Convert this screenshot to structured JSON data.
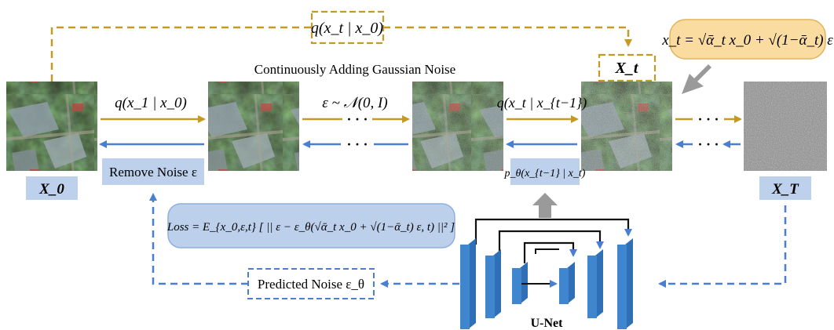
{
  "top_transition": "q(x_t | x_0)",
  "subtitle": "Continuously Adding Gaussian Noise",
  "formula_box": "x_t = √ᾱ_t x_0 + √(1−ᾱ_t) ε",
  "xt_box": "X_t",
  "arrows": {
    "q_x1_x0": "q(x_1 | x_0)",
    "noise_dist": "ε ~ 𝒩(0, I)",
    "q_xt_xt1": "q(x_t | x_{t−1})",
    "ellipsis": "· · ·"
  },
  "labels": {
    "x0": "X_0",
    "xT": "X_T",
    "remove_noise": "Remove Noise ε",
    "p_theta": "p_θ(x_{t−1} | x_t)",
    "predicted_noise": "Predicted Noise ε_θ",
    "loss": "Loss = E_{x_0,ε,t} [ || ε − ε_θ(√ᾱ_t x_0 + √(1−ᾱ_t) ε, t) ||² ]",
    "unet": "U-Net"
  },
  "colors": {
    "forward": "#c49a22",
    "reverse": "#4a7fd0",
    "label_box": "#bdd0ec",
    "formula_fill": "#fbdca0",
    "loss_fill": "#bcd0ec",
    "unet_block": "#3f86cf"
  }
}
